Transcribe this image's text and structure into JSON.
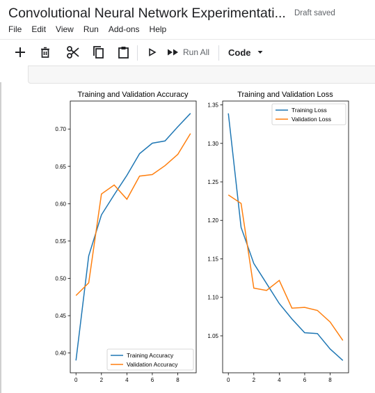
{
  "header": {
    "title": "Convolutional Neural Network Experimentati...",
    "status": "Draft saved"
  },
  "menu": [
    "File",
    "Edit",
    "View",
    "Run",
    "Add-ons",
    "Help"
  ],
  "toolbar": {
    "run_all_label": "Run All",
    "cell_type": "Code"
  },
  "colors": {
    "train": "#1f77b4",
    "val": "#ff7f0e"
  },
  "chart_data": [
    {
      "type": "line",
      "title": "Training and Validation Accuracy",
      "x": [
        0,
        1,
        2,
        3,
        4,
        5,
        6,
        7,
        8,
        9
      ],
      "series": [
        {
          "name": "Training Accuracy",
          "values": [
            0.39,
            0.53,
            0.585,
            0.612,
            0.638,
            0.667,
            0.681,
            0.684,
            0.703,
            0.721
          ]
        },
        {
          "name": "Validation Accuracy",
          "values": [
            0.477,
            0.494,
            0.613,
            0.625,
            0.606,
            0.637,
            0.639,
            0.651,
            0.666,
            0.694
          ]
        }
      ],
      "xticks": [
        0,
        2,
        4,
        6,
        8
      ],
      "yticks": [
        0.4,
        0.45,
        0.5,
        0.55,
        0.6,
        0.65,
        0.7
      ],
      "ytick_labels": [
        "0.40",
        "0.45",
        "0.50",
        "0.55",
        "0.60",
        "0.65",
        "0.70"
      ],
      "xlim": [
        -0.45,
        9.45
      ],
      "ylim": [
        0.3735,
        0.7375
      ],
      "legend": "lower-right"
    },
    {
      "type": "line",
      "title": "Training and Validation Loss",
      "x": [
        0,
        1,
        2,
        3,
        4,
        5,
        6,
        7,
        8,
        9
      ],
      "series": [
        {
          "name": "Training Loss",
          "values": [
            1.339,
            1.191,
            1.144,
            1.118,
            1.092,
            1.072,
            1.054,
            1.053,
            1.033,
            1.018
          ]
        },
        {
          "name": "Validation Loss",
          "values": [
            1.233,
            1.222,
            1.112,
            1.109,
            1.122,
            1.086,
            1.087,
            1.083,
            1.068,
            1.044
          ]
        }
      ],
      "xticks": [
        0,
        2,
        4,
        6,
        8
      ],
      "yticks": [
        1.05,
        1.1,
        1.15,
        1.2,
        1.25,
        1.3,
        1.35
      ],
      "ytick_labels": [
        "1.05",
        "1.10",
        "1.15",
        "1.20",
        "1.25",
        "1.30",
        "1.35"
      ],
      "xlim": [
        -0.45,
        9.45
      ],
      "ylim": [
        1.002,
        1.355
      ],
      "legend": "upper-right"
    }
  ]
}
